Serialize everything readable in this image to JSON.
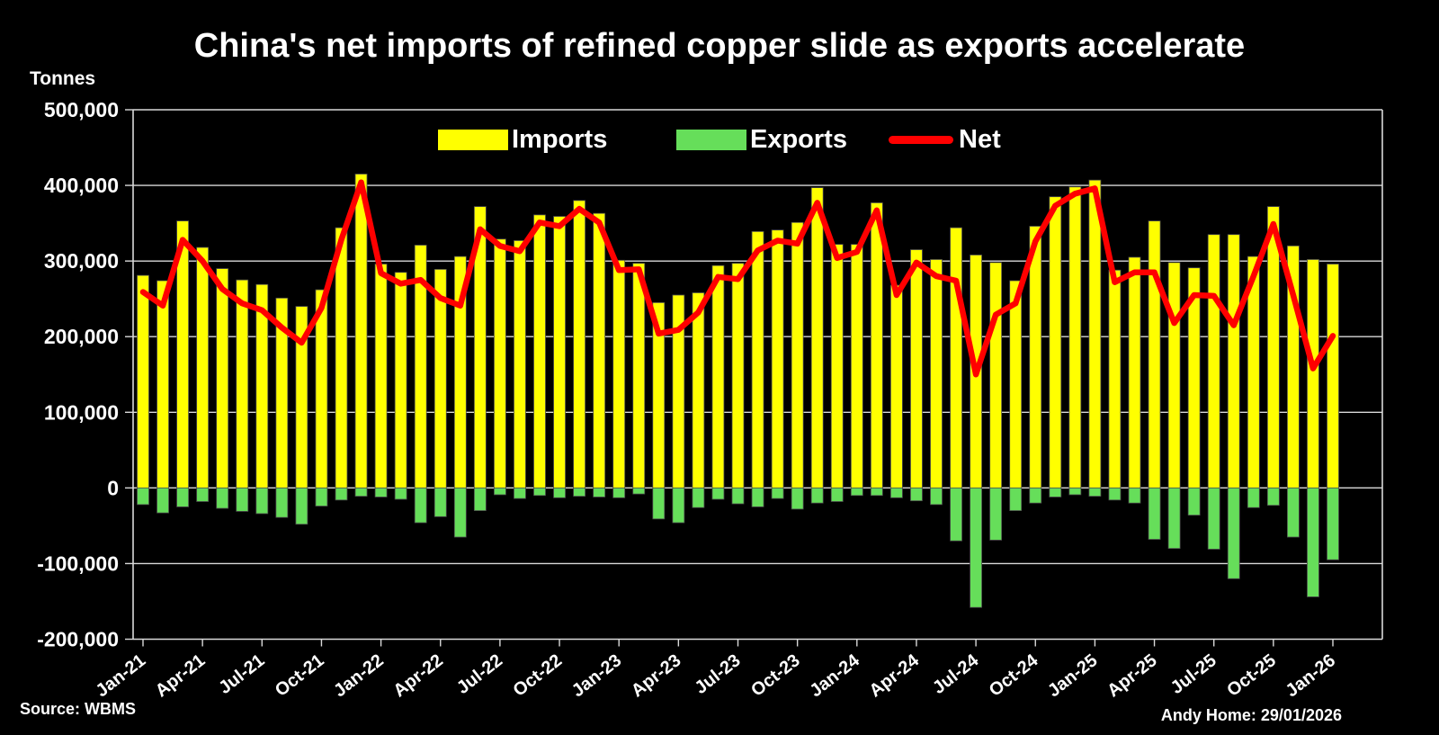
{
  "title": "China's net imports of refined copper slide as exports accelerate",
  "units_label": "Tonnes",
  "source": "Source: WBMS",
  "attribution": "Andy Home: 29/01/2026",
  "colors": {
    "background": "#000000",
    "imports": "#FFFF00",
    "exports": "#66DE5A",
    "net": "#FF0000",
    "grid": "#D9D9D9",
    "text": "#FFFFFF"
  },
  "legend": {
    "imports_label": "Imports",
    "exports_label": "Exports",
    "net_label": "Net"
  },
  "chart_data": {
    "type": "bar",
    "subtype": "monthly bars with line overlay",
    "title": "China's net imports of refined copper slide as exports accelerate",
    "xlabel": "",
    "ylabel": "Tonnes",
    "ylim": [
      -200000,
      500000
    ],
    "ytick_interval": 100000,
    "ytick_labels": [
      "500,000",
      "400,000",
      "300,000",
      "200,000",
      "100,000",
      "0",
      "-100,000",
      "-200,000"
    ],
    "grid": true,
    "legend_position": "top-center-inside",
    "categories": [
      "Jan-21",
      "Feb-21",
      "Mar-21",
      "Apr-21",
      "May-21",
      "Jun-21",
      "Jul-21",
      "Aug-21",
      "Sep-21",
      "Oct-21",
      "Nov-21",
      "Dec-21",
      "Jan-22",
      "Feb-22",
      "Mar-22",
      "Apr-22",
      "May-22",
      "Jun-22",
      "Jul-22",
      "Aug-22",
      "Sep-22",
      "Oct-22",
      "Nov-22",
      "Dec-22",
      "Jan-23",
      "Feb-23",
      "Mar-23",
      "Apr-23",
      "May-23",
      "Jun-23",
      "Jul-23",
      "Aug-23",
      "Sep-23",
      "Oct-23",
      "Nov-23",
      "Dec-23",
      "Jan-24",
      "Feb-24",
      "Mar-24",
      "Apr-24",
      "May-24",
      "Jun-24",
      "Jul-24",
      "Aug-24",
      "Sep-24",
      "Oct-24",
      "Nov-24",
      "Dec-24",
      "Jan-25",
      "Feb-25",
      "Mar-25",
      "Apr-25",
      "May-25",
      "Jun-25",
      "Jul-25",
      "Aug-25",
      "Sep-25",
      "Oct-25",
      "Nov-25",
      "Dec-25",
      "Jan-26"
    ],
    "x_tick_shown_every": 3,
    "series": [
      {
        "name": "Imports",
        "type": "bar",
        "color": "#FFFF00",
        "values": [
          281000,
          274000,
          353000,
          318000,
          290000,
          275000,
          269000,
          251000,
          240000,
          262000,
          344000,
          415000,
          296000,
          285000,
          321000,
          289000,
          306000,
          372000,
          329000,
          327000,
          361000,
          359000,
          380000,
          363000,
          301000,
          297000,
          245000,
          255000,
          258000,
          294000,
          297000,
          339000,
          341000,
          351000,
          397000,
          322000,
          322000,
          377000,
          268000,
          315000,
          302000,
          344000,
          308000,
          298000,
          274000,
          346000,
          385000,
          398000,
          407000,
          288000,
          305000,
          353000,
          298000,
          291000,
          335000,
          335000,
          306000,
          372000,
          320000,
          302000,
          296000
        ]
      },
      {
        "name": "Exports",
        "type": "bar",
        "color": "#66DE5A",
        "values": [
          -22000,
          -33000,
          -25000,
          -18000,
          -27000,
          -31000,
          -34000,
          -39000,
          -48000,
          -24000,
          -16000,
          -11000,
          -12000,
          -15000,
          -46000,
          -38000,
          -65000,
          -30000,
          -9000,
          -14000,
          -10000,
          -13000,
          -11000,
          -12000,
          -13000,
          -8000,
          -41000,
          -46000,
          -26000,
          -15000,
          -21000,
          -25000,
          -14000,
          -28000,
          -20000,
          -18000,
          -10000,
          -10000,
          -13000,
          -17000,
          -22000,
          -70000,
          -158000,
          -69000,
          -30000,
          -20000,
          -12000,
          -9000,
          -11000,
          -16000,
          -20000,
          -68000,
          -80000,
          -36000,
          -81000,
          -120000,
          -26000,
          -23000,
          -65000,
          -144000,
          -95000
        ]
      },
      {
        "name": "Net",
        "type": "line",
        "color": "#FF0000",
        "values": [
          259000,
          241000,
          328000,
          300000,
          263000,
          244000,
          235000,
          212000,
          192000,
          238000,
          328000,
          404000,
          284000,
          270000,
          275000,
          251000,
          241000,
          342000,
          320000,
          313000,
          351000,
          346000,
          369000,
          351000,
          288000,
          289000,
          204000,
          209000,
          232000,
          279000,
          276000,
          314000,
          327000,
          323000,
          377000,
          304000,
          312000,
          367000,
          255000,
          298000,
          280000,
          274000,
          150000,
          229000,
          244000,
          326000,
          373000,
          389000,
          396000,
          272000,
          285000,
          285000,
          218000,
          255000,
          254000,
          215000,
          280000,
          349000,
          255000,
          158000,
          201000
        ]
      }
    ]
  }
}
